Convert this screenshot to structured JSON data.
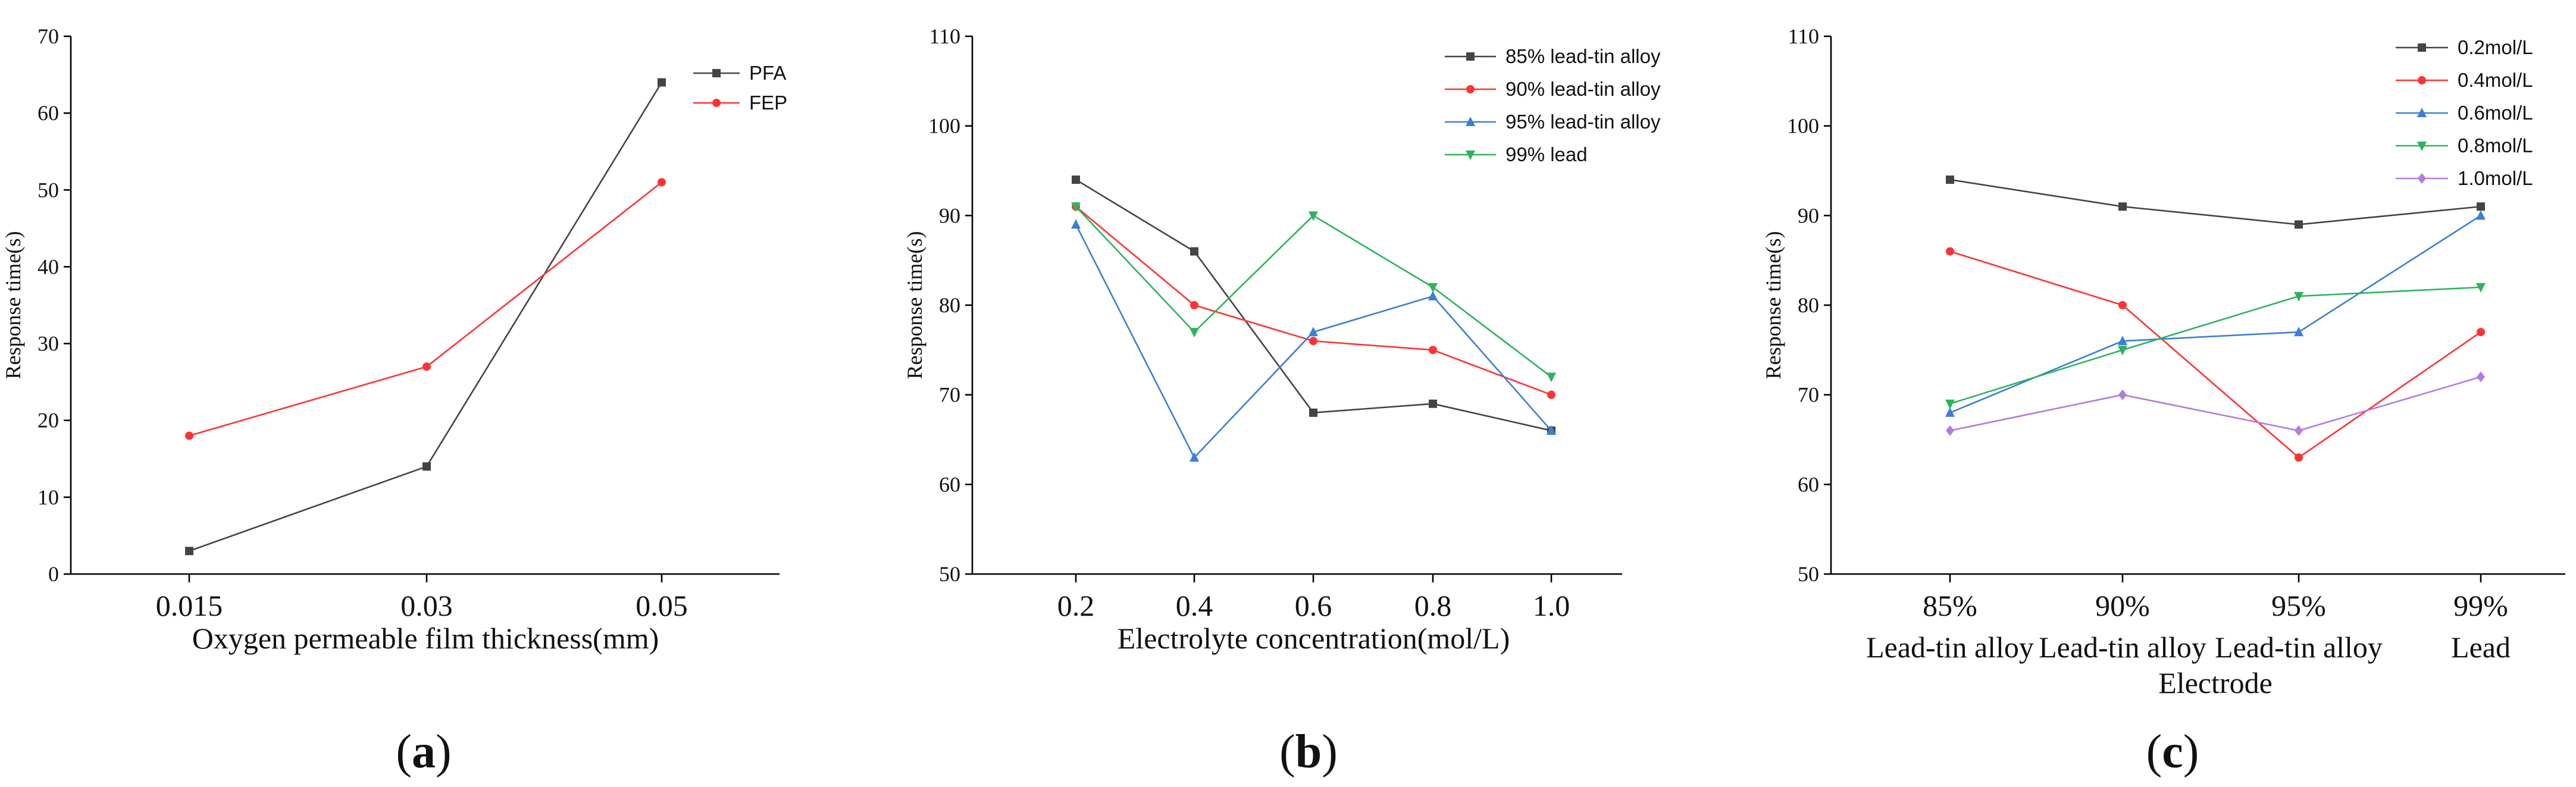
{
  "chart_data": [
    {
      "panel": "(a)",
      "panel_letter": "a",
      "type": "line",
      "xlabel": "Oxygen permeable film thickness(mm)",
      "ylabel": "Response time(s)",
      "categories": [
        "0.015",
        "0.03",
        "0.05"
      ],
      "ylim": [
        0,
        70
      ],
      "yticks": [
        "0",
        "10",
        "20",
        "30",
        "40",
        "50",
        "60",
        "70"
      ],
      "xlabels": [],
      "series": [
        {
          "name": "PFA",
          "color": "#444444",
          "marker": "square",
          "values": [
            3,
            14,
            64
          ]
        },
        {
          "name": "FEP",
          "color": "#ff3333",
          "marker": "circle",
          "values": [
            18,
            27,
            51
          ]
        }
      ]
    },
    {
      "panel": "(b)",
      "panel_letter": "b",
      "type": "line",
      "xlabel": "Electrolyte concentration(mol/L)",
      "ylabel": "Response time(s)",
      "categories": [
        "0.2",
        "0.4",
        "0.6",
        "0.8",
        "1.0"
      ],
      "ylim": [
        50,
        110
      ],
      "yticks": [
        "50",
        "60",
        "70",
        "80",
        "90",
        "100",
        "110"
      ],
      "xlabels": [],
      "series": [
        {
          "name": "85% lead-tin alloy",
          "color": "#444444",
          "marker": "square",
          "values": [
            94,
            86,
            68,
            69,
            66
          ]
        },
        {
          "name": "90% lead-tin alloy",
          "color": "#ff3333",
          "marker": "circle",
          "values": [
            91,
            80,
            76,
            75,
            70
          ]
        },
        {
          "name": "95% lead-tin alloy",
          "color": "#3a7fd5",
          "marker": "triangle-up",
          "values": [
            89,
            63,
            77,
            81,
            66
          ]
        },
        {
          "name": "99% lead",
          "color": "#2db35d",
          "marker": "triangle-down",
          "values": [
            91,
            77,
            90,
            82,
            72
          ]
        }
      ]
    },
    {
      "panel": "(c)",
      "panel_letter": "c",
      "type": "line",
      "xlabel": "Electrode",
      "ylabel": "Response time(s)",
      "categories": [
        "85%",
        "90%",
        "95%",
        "99%"
      ],
      "xlabels": [
        "Lead-tin alloy",
        "Lead-tin alloy",
        "Lead-tin alloy",
        "Lead"
      ],
      "ylim": [
        50,
        110
      ],
      "yticks": [
        "50",
        "60",
        "70",
        "80",
        "90",
        "100",
        "110"
      ],
      "series": [
        {
          "name": "0.2mol/L",
          "color": "#444444",
          "marker": "square",
          "values": [
            94,
            91,
            89,
            91
          ]
        },
        {
          "name": "0.4mol/L",
          "color": "#ff3333",
          "marker": "circle",
          "values": [
            86,
            80,
            63,
            77
          ]
        },
        {
          "name": "0.6mol/L",
          "color": "#3a7fd5",
          "marker": "triangle-up",
          "values": [
            68,
            76,
            77,
            90
          ]
        },
        {
          "name": "0.8mol/L",
          "color": "#2db35d",
          "marker": "triangle-down",
          "values": [
            69,
            75,
            81,
            82
          ]
        },
        {
          "name": "1.0mol/L",
          "color": "#b57be0",
          "marker": "diamond",
          "values": [
            66,
            70,
            66,
            72
          ]
        }
      ]
    }
  ]
}
